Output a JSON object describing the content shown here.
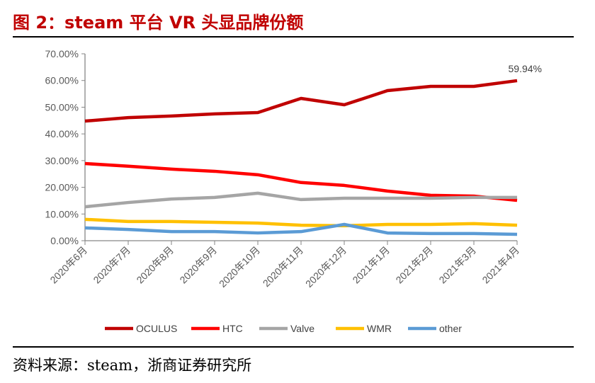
{
  "title": "图 2：steam 平台 VR 头显品牌份额",
  "source": "资料来源：steam，浙商证券研究所",
  "chart_data": {
    "type": "line",
    "categories": [
      "2020年6月",
      "2020年7月",
      "2020年8月",
      "2020年9月",
      "2020年10月",
      "2020年11月",
      "2020年12月",
      "2021年1月",
      "2021年2月",
      "2021年3月",
      "2021年4月"
    ],
    "ylim": [
      0,
      70
    ],
    "yticks": [
      "0.00%",
      "10.00%",
      "20.00%",
      "30.00%",
      "40.00%",
      "50.00%",
      "60.00%",
      "70.00%"
    ],
    "grid": false,
    "legend": "bottom",
    "series": [
      {
        "name": "OCULUS",
        "color": "#c00000",
        "values": [
          44.8,
          46.1,
          46.7,
          47.5,
          48.0,
          53.3,
          50.9,
          56.2,
          57.8,
          57.8,
          59.94
        ]
      },
      {
        "name": "HTC",
        "color": "#ff0000",
        "values": [
          28.9,
          27.9,
          26.8,
          26.0,
          24.7,
          21.8,
          20.7,
          18.6,
          17.0,
          16.7,
          15.1
        ]
      },
      {
        "name": "Valve",
        "color": "#a5a5a5",
        "values": [
          12.7,
          14.3,
          15.6,
          16.2,
          17.8,
          15.4,
          15.9,
          15.9,
          15.9,
          16.2,
          16.2
        ]
      },
      {
        "name": "WMR",
        "color": "#ffc000",
        "values": [
          8.0,
          7.2,
          7.2,
          6.9,
          6.6,
          5.8,
          5.6,
          6.1,
          6.1,
          6.4,
          5.8
        ]
      },
      {
        "name": "other",
        "color": "#5b9bd5",
        "values": [
          4.8,
          4.2,
          3.4,
          3.4,
          2.9,
          3.4,
          6.1,
          2.9,
          2.7,
          2.7,
          2.4
        ]
      }
    ],
    "annotations": [
      {
        "text": "59.94%",
        "series": "OCULUS",
        "category": "2021年4月"
      }
    ]
  }
}
